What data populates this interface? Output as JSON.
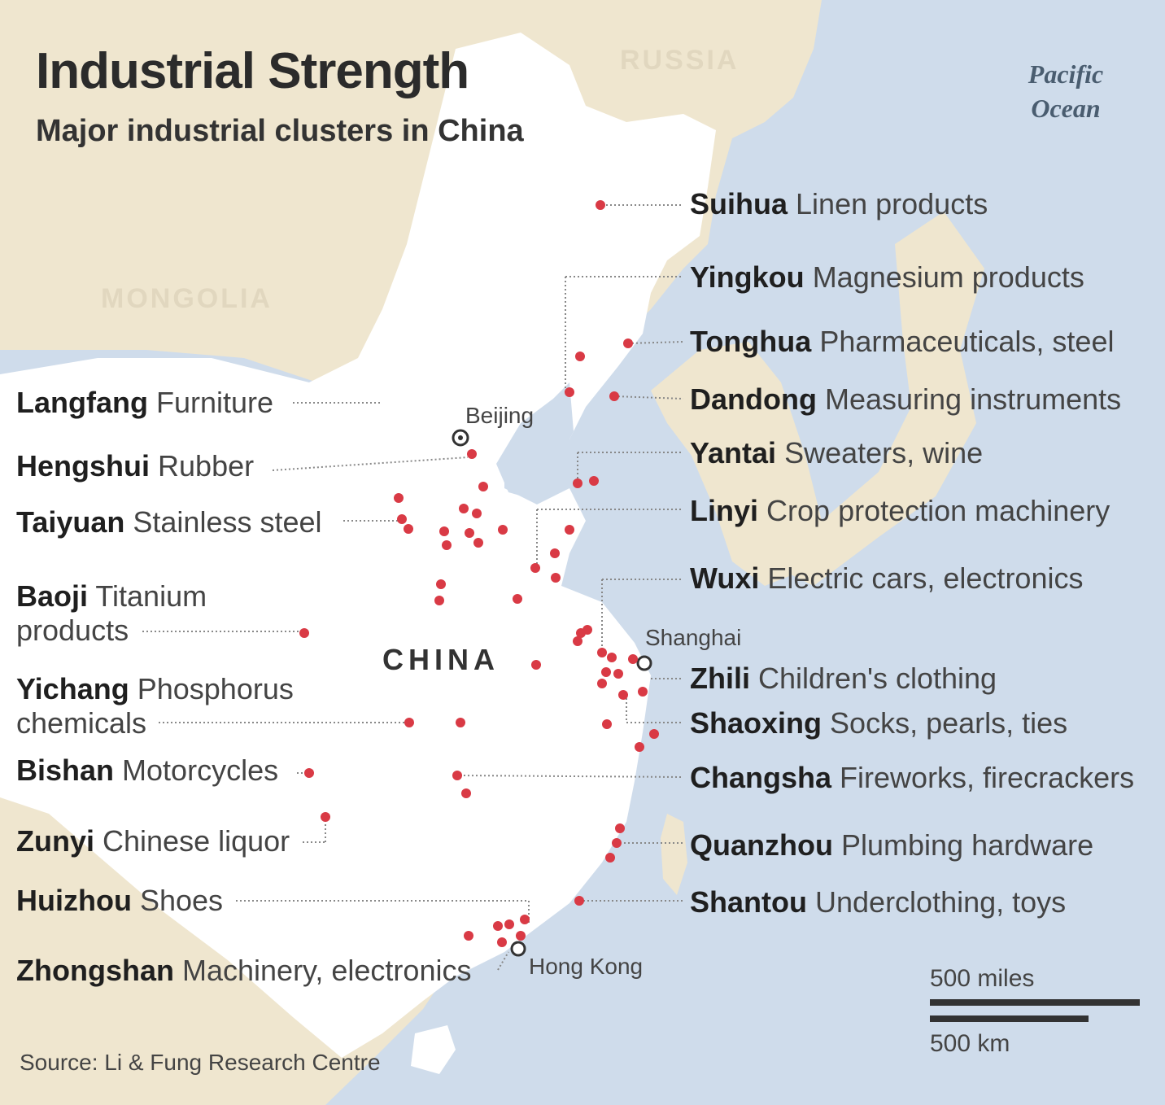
{
  "title": "Industrial Strength",
  "subtitle": "Major industrial clusters in China",
  "regions": {
    "russia": "RUSSIA",
    "mongolia": "MONGOLIA",
    "china": "CHINA"
  },
  "ocean_lines": [
    "Pacific",
    "Ocean"
  ],
  "cities": {
    "beijing": "Beijing",
    "shanghai": "Shanghai",
    "hong_kong": "Hong Kong"
  },
  "clusters_left": [
    {
      "name": "Langfang",
      "product": "Furniture"
    },
    {
      "name": "Hengshui",
      "product": "Rubber"
    },
    {
      "name": "Taiyuan",
      "product": "Stainless steel"
    },
    {
      "name": "Baoji",
      "product": "Titanium",
      "product_line2": "products"
    },
    {
      "name": "Yichang",
      "product": "Phosphorus",
      "product_line2": "chemicals"
    },
    {
      "name": "Bishan",
      "product": "Motorcycles"
    },
    {
      "name": "Zunyi",
      "product": "Chinese liquor"
    },
    {
      "name": "Huizhou",
      "product": "Shoes"
    },
    {
      "name": "Zhongshan",
      "product": "Machinery, electronics"
    }
  ],
  "clusters_right": [
    {
      "name": "Suihua",
      "product": "Linen products"
    },
    {
      "name": "Yingkou",
      "product": "Magnesium products"
    },
    {
      "name": "Tonghua",
      "product": "Pharmaceuticals, steel"
    },
    {
      "name": "Dandong",
      "product": "Measuring instruments"
    },
    {
      "name": "Yantai",
      "product": "Sweaters, wine"
    },
    {
      "name": "Linyi",
      "product": "Crop protection machinery"
    },
    {
      "name": "Wuxi",
      "product": "Electric cars, electronics"
    },
    {
      "name": "Zhili",
      "product": "Children's clothing"
    },
    {
      "name": "Shaoxing",
      "product": "Socks, pearls, ties"
    },
    {
      "name": "Changsha",
      "product": "Fireworks, firecrackers"
    },
    {
      "name": "Quanzhou",
      "product": "Plumbing hardware"
    },
    {
      "name": "Shantou",
      "product": "Underclothing, toys"
    }
  ],
  "scale": {
    "miles": "500 miles",
    "km": "500 km"
  },
  "source": "Source: Li & Fung Research Centre",
  "colors": {
    "sea": "#cfdceb",
    "neighbor_land": "#efe6cf",
    "china": "#ffffff",
    "cluster_dot": "#d93a45",
    "text": "#2b2b2b"
  }
}
